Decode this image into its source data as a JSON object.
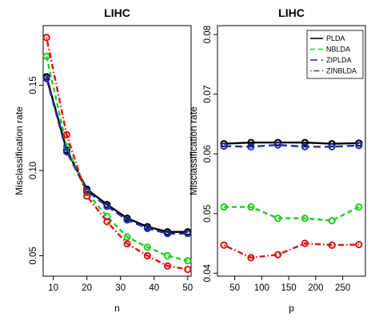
{
  "chart_data": [
    {
      "type": "line",
      "title": "LIHC",
      "xlabel": "n",
      "ylabel": "Misclassification rate",
      "xlim": [
        7,
        51
      ],
      "ylim": [
        0.038,
        0.185
      ],
      "xticks": [
        10,
        20,
        30,
        40,
        50
      ],
      "yticks": [
        0.05,
        0.1,
        0.15
      ],
      "ytick_labels": [
        "0.05",
        "0.10",
        "0.15"
      ],
      "x": [
        8,
        14,
        20,
        26,
        32,
        38,
        44,
        50
      ],
      "series": [
        {
          "name": "PLDA",
          "color": "#000000",
          "dash": "solid",
          "values": [
            0.155,
            0.112,
            0.089,
            0.08,
            0.072,
            0.067,
            0.064,
            0.064
          ]
        },
        {
          "name": "NBLDA",
          "color": "#22cc22",
          "dash": "dashed",
          "values": [
            0.167,
            0.114,
            0.087,
            0.073,
            0.061,
            0.055,
            0.05,
            0.047
          ]
        },
        {
          "name": "ZIPLDA",
          "color": "#1f2ea8",
          "dash": "longdash",
          "values": [
            0.154,
            0.111,
            0.088,
            0.079,
            0.071,
            0.066,
            0.063,
            0.063
          ]
        },
        {
          "name": "ZINBLDA",
          "color": "#dd1111",
          "dash": "dotdash",
          "values": [
            0.178,
            0.121,
            0.085,
            0.07,
            0.057,
            0.05,
            0.044,
            0.042
          ]
        }
      ]
    },
    {
      "type": "line",
      "title": "LIHC",
      "xlabel": "p",
      "ylabel": "Misclassification rate",
      "xlim": [
        18,
        292
      ],
      "ylim": [
        0.0395,
        0.0815
      ],
      "xticks": [
        50,
        100,
        150,
        200,
        250
      ],
      "yticks": [
        0.04,
        0.05,
        0.06,
        0.07,
        0.08
      ],
      "ytick_labels": [
        "0.04",
        "0.05",
        "0.06",
        "0.07",
        "0.08"
      ],
      "x": [
        30,
        80,
        130,
        180,
        230,
        280
      ],
      "legend": {
        "position": "top-right",
        "entries": [
          "PLDA",
          "NBLDA",
          "ZIPLDA",
          "ZINBLDA"
        ]
      },
      "series": [
        {
          "name": "PLDA",
          "color": "#000000",
          "dash": "solid",
          "values": [
            0.0617,
            0.0619,
            0.0619,
            0.0619,
            0.0617,
            0.0618
          ]
        },
        {
          "name": "NBLDA",
          "color": "#22cc22",
          "dash": "dashed",
          "values": [
            0.0511,
            0.0511,
            0.0492,
            0.0492,
            0.0488,
            0.0511
          ]
        },
        {
          "name": "ZIPLDA",
          "color": "#1f2ea8",
          "dash": "longdash",
          "values": [
            0.0613,
            0.0612,
            0.0615,
            0.0612,
            0.0612,
            0.0614
          ]
        },
        {
          "name": "ZINBLDA",
          "color": "#dd1111",
          "dash": "dotdash",
          "values": [
            0.0447,
            0.0426,
            0.0431,
            0.045,
            0.0447,
            0.0448
          ]
        }
      ]
    }
  ]
}
